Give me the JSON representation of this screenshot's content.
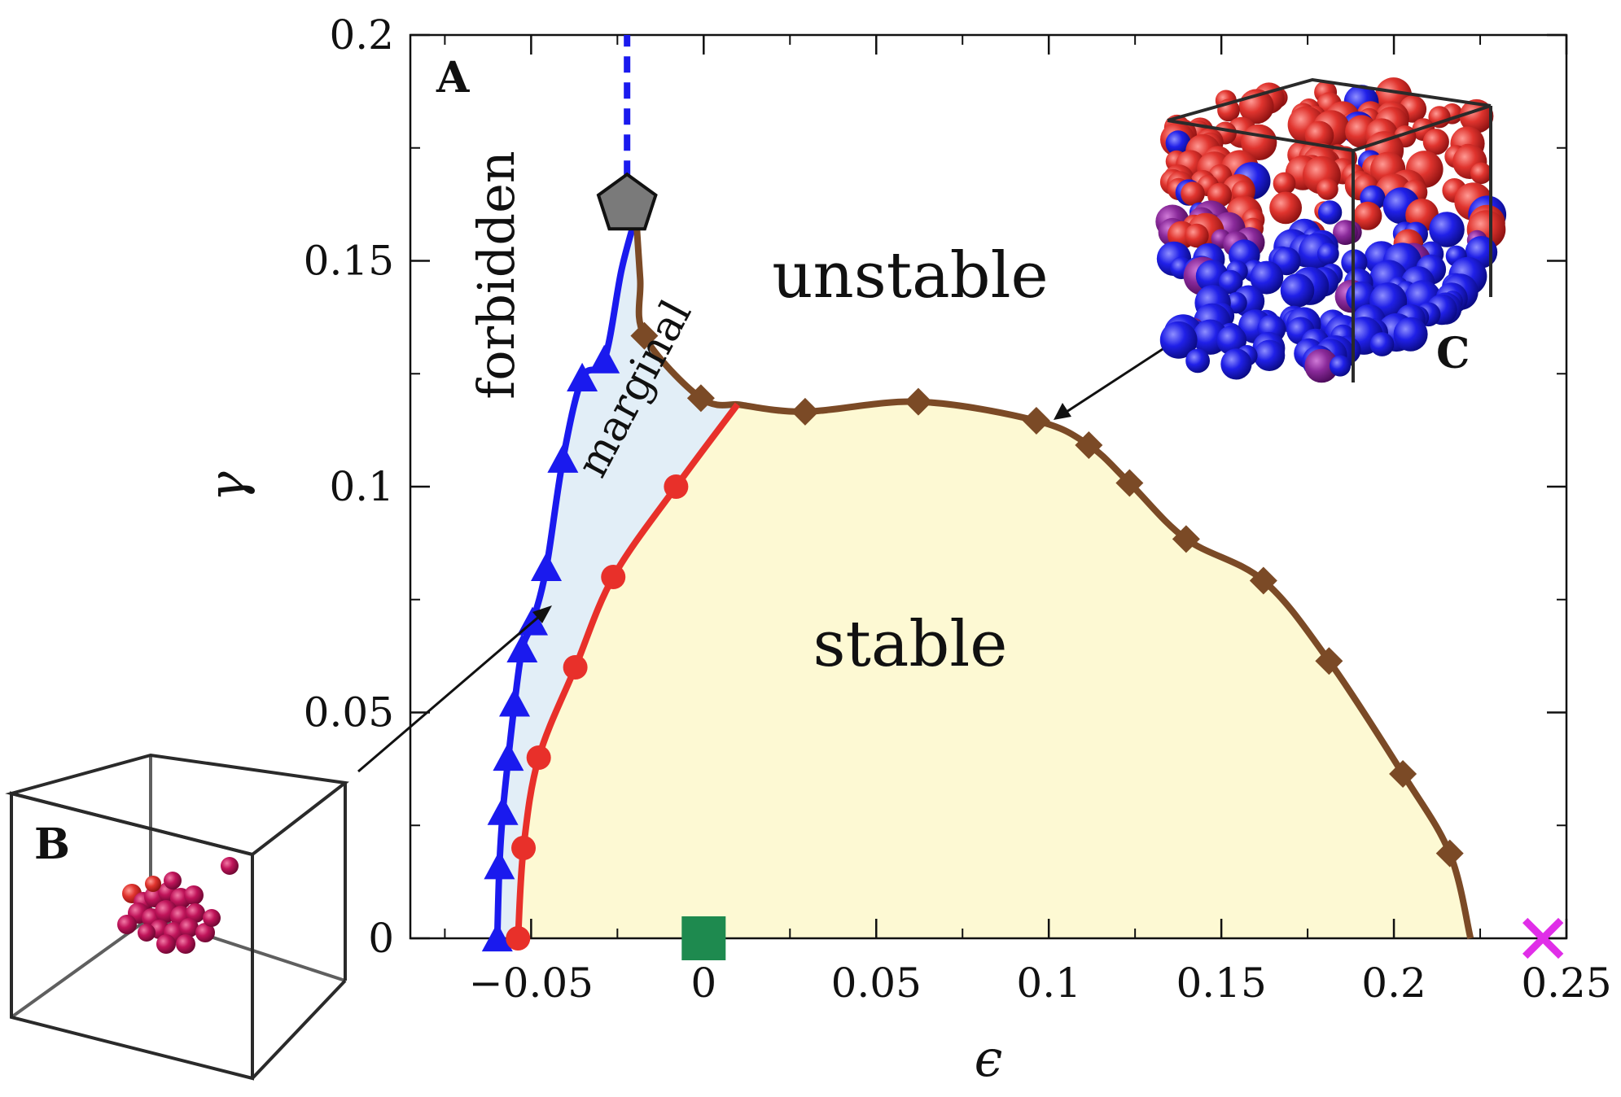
{
  "chart_data": {
    "type": "line",
    "xlabel": "ϵ",
    "ylabel": "γ",
    "xlim": [
      -0.085,
      0.25
    ],
    "ylim": [
      0,
      0.2
    ],
    "xticks": [
      -0.05,
      0,
      0.05,
      0.1,
      0.15,
      0.2,
      0.25
    ],
    "xtick_labels": [
      "−0.05",
      "0",
      "0.05",
      "0.1",
      "0.15",
      "0.2",
      "0.25"
    ],
    "yticks": [
      0,
      0.05,
      0.1,
      0.15,
      0.2
    ],
    "ytick_labels": [
      "0",
      "0.05",
      "0.1",
      "0.15",
      "0.2"
    ],
    "grid": false,
    "series": [
      {
        "marker": "triangle",
        "color": "#1a1aee",
        "x": [
          -0.0598,
          -0.0592,
          -0.0582,
          -0.0566,
          -0.0548,
          -0.0526,
          -0.0496,
          -0.0456,
          -0.0408,
          -0.0352,
          -0.0288
        ],
        "y": [
          0,
          0.016,
          0.028,
          0.04,
          0.052,
          0.064,
          0.07,
          0.082,
          0.106,
          0.124,
          0.128
        ]
      },
      {
        "marker": "circle",
        "color": "#e8302a",
        "x": [
          -0.0538,
          -0.0522,
          -0.0478,
          -0.0372,
          -0.0262,
          -0.008
        ],
        "y": [
          0,
          0.02,
          0.04,
          0.06,
          0.08,
          0.1
        ]
      },
      {
        "marker": "diamond",
        "color": "#7b4a26",
        "x": [
          -0.0172,
          -0.0008,
          0.0294,
          0.0622,
          0.0964,
          0.1116,
          0.1234,
          0.1398,
          0.1622,
          0.1812,
          0.2026,
          0.2162
        ],
        "y": [
          0.1334,
          0.1196,
          0.1166,
          0.1188,
          0.1146,
          0.1092,
          0.1008,
          0.0884,
          0.0792,
          0.0614,
          0.0364,
          0.0188
        ]
      }
    ],
    "annotations": [
      "A",
      "forbidden",
      "marginal",
      "unstable",
      "stable",
      "B",
      "C"
    ]
  },
  "colors": {
    "blue": "#1a1aee",
    "red": "#e8302a",
    "brown": "#7b4a26",
    "stable_fill": "#fdf9d3",
    "marginal_fill": "#e2eef7",
    "pentagon": "#7a7a7a",
    "square": "#1e8a4f",
    "cross": "#e02ee8"
  },
  "labels": {
    "panel_a": "A",
    "panel_b": "B",
    "panel_c": "C",
    "forbidden": "forbidden",
    "marginal": "marginal",
    "unstable": "unstable",
    "stable": "stable"
  }
}
